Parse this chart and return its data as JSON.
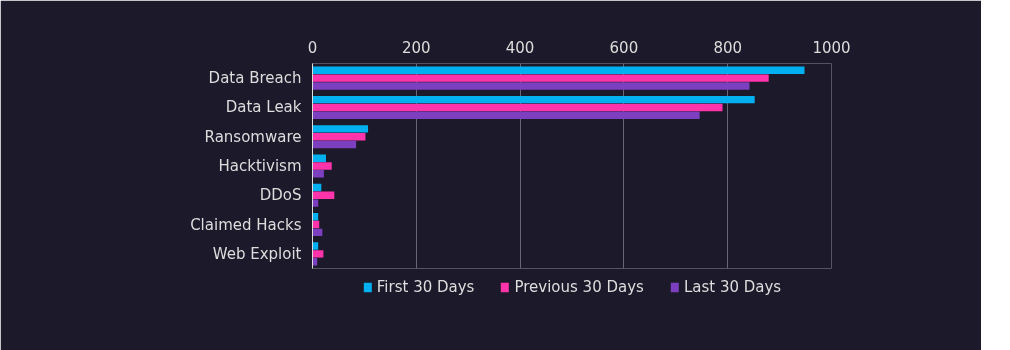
{
  "chart_data": {
    "type": "bar",
    "orientation": "horizontal",
    "categories": [
      "Data Breach",
      "Data Leak",
      "Ransomware",
      "Hacktivism",
      "DDoS",
      "Claimed Hacks",
      "Web Exploit"
    ],
    "series": [
      {
        "name": "First 30 Days",
        "color": "#00b0f0",
        "values": [
          948,
          852,
          107,
          26,
          17,
          11,
          11
        ]
      },
      {
        "name": "Previous 30 Days",
        "color": "#ff33aa",
        "values": [
          879,
          790,
          102,
          37,
          42,
          13,
          21
        ]
      },
      {
        "name": "Last 30 Days",
        "color": "#7b3fbf",
        "values": [
          842,
          746,
          84,
          22,
          11,
          19,
          9
        ]
      }
    ],
    "xlim": [
      0,
      1000
    ],
    "xticks": [
      0,
      200,
      400,
      600,
      800,
      1000
    ],
    "grid": "x",
    "legend": "bottom"
  }
}
